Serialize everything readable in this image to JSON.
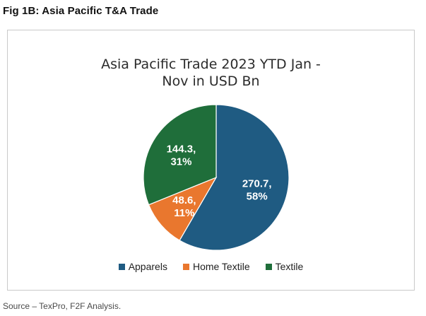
{
  "figure": {
    "label": "Fig 1B: Asia Pacific T&A Trade",
    "source": "Source – TexPro, F2F Analysis."
  },
  "chart_data": {
    "type": "pie",
    "title_line1": "Asia Pacific Trade 2023 YTD Jan -",
    "title_line2": "Nov in USD Bn",
    "categories": [
      "Apparels",
      "Home Textile",
      "Textile"
    ],
    "values": [
      270.7,
      48.6,
      144.3
    ],
    "percent_labels": [
      "58%",
      "11%",
      "31%"
    ],
    "value_labels": [
      "270.7,",
      "48.6,",
      "144.3,"
    ],
    "colors": [
      "#1f5b82",
      "#e9772e",
      "#1f6e3a"
    ],
    "start_at": "12 o'clock",
    "direction": "clockwise",
    "legend_position": "bottom"
  }
}
